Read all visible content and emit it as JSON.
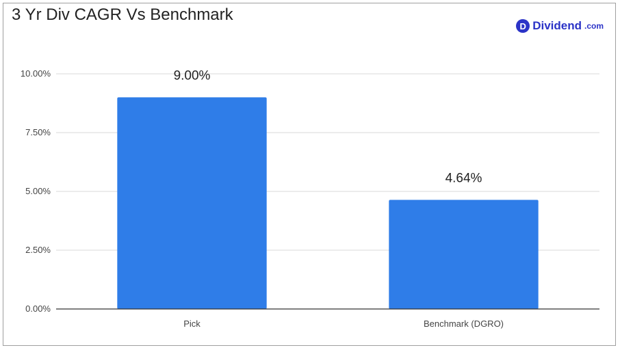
{
  "chart_data": {
    "type": "bar",
    "title": "3 Yr Div CAGR Vs Benchmark",
    "categories": [
      "Pick",
      "Benchmark (DGRO)"
    ],
    "values": [
      9.0,
      4.64
    ],
    "data_labels": [
      "9.00%",
      "4.64%"
    ],
    "ylim": [
      0,
      10
    ],
    "yticks": [
      0,
      2.5,
      5,
      7.5,
      10
    ],
    "ytick_labels": [
      "0.00%",
      "2.50%",
      "5.00%",
      "7.50%",
      "10.00%"
    ],
    "xlabel": "",
    "ylabel": "",
    "grid": true,
    "bar_color": "#2f7de8"
  },
  "logo": {
    "badge": "D",
    "text": "Dividend",
    "suffix": ".com",
    "color": "#2b33c7"
  }
}
